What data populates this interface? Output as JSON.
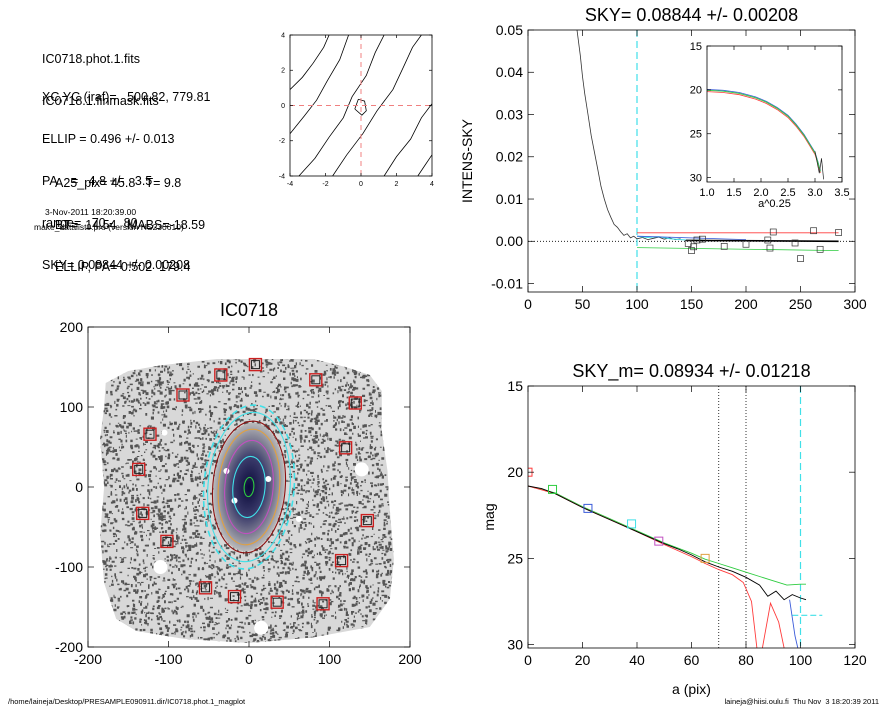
{
  "header": {
    "lines_a": [
      "IC0718.phot.1.fits",
      "IC0718.1.finmask.fits"
    ],
    "lines_b": [
      "XC,YC (iraf)=   500.82, 779.81",
      "ELLIP = 0.496 +/- 0.013",
      "PA    =   4.8 +/-   3.5",
      "range=   70.-   80.",
      "SKY= 0.08844 +/- 0.00208"
    ],
    "lines_c": [
      "A25_pix= 45.8   T= 9.8",
      "BT=  14.54   MABS=-18.59",
      "ELLIP, PA= 0.502  179.4"
    ],
    "date": "3-Nov-2011 18:20:39.00",
    "program": "make_datalist0.pro (version HS230610)"
  },
  "footer": {
    "path": "/home/laineja/Desktop/PRESAMPLE090911.dir/IC0718.phot.1_magplot",
    "user": "laineja@hiisi.oulu.fi  Thu Nov  3 18:20:39 2011"
  },
  "colors": {
    "black": "#000000",
    "red": "#ff3b3b",
    "green": "#2ecc40",
    "blue": "#3a5bd9",
    "cyan": "#40e0e8",
    "magenta": "#c050c0",
    "orange": "#e0a040",
    "pink_dash": "#f08080",
    "dark_red": "#8b1010",
    "box_red": "#cc2020"
  },
  "chart_data": [
    {
      "id": "centroid_contours",
      "type": "line",
      "xlim": [
        -4,
        4
      ],
      "ylim": [
        -4,
        4
      ],
      "xticks": [
        -4,
        -2,
        0,
        2,
        4
      ],
      "yticks": [
        -4,
        -2,
        0,
        2,
        4
      ],
      "xtick_labels": [
        "-4",
        "-2",
        "0",
        "2",
        "4"
      ],
      "ytick_labels": [
        "-4",
        "-2",
        "0",
        "2",
        "4"
      ],
      "crosshair": [
        0,
        0
      ],
      "contours": [
        [
          [
            -4,
            0.9
          ],
          [
            -3.3,
            1.6
          ],
          [
            -2.7,
            2.4
          ],
          [
            -2.1,
            3.3
          ],
          [
            -1.8,
            4
          ]
        ],
        [
          [
            -4,
            -1.6
          ],
          [
            -3.2,
            -0.6
          ],
          [
            -2.5,
            0.3
          ],
          [
            -1.9,
            1.4
          ],
          [
            -1.2,
            2.6
          ],
          [
            -0.7,
            4
          ]
        ],
        [
          [
            -3.5,
            -4
          ],
          [
            -2.6,
            -3.0
          ],
          [
            -1.8,
            -1.8
          ],
          [
            -1.0,
            -0.7
          ],
          [
            -0.5,
            0.5
          ],
          [
            0.3,
            1.7
          ],
          [
            0.8,
            3.0
          ],
          [
            1.3,
            4
          ]
        ],
        [
          [
            -1.6,
            -4
          ],
          [
            -0.8,
            -2.8
          ],
          [
            0.1,
            -1.6
          ],
          [
            0.9,
            -0.3
          ],
          [
            1.8,
            0.9
          ],
          [
            2.4,
            2.2
          ],
          [
            2.9,
            3.3
          ],
          [
            3.4,
            4
          ]
        ],
        [
          [
            1.3,
            -4
          ],
          [
            2.0,
            -2.9
          ],
          [
            2.8,
            -1.9
          ],
          [
            3.4,
            -0.7
          ],
          [
            4,
            0.1
          ]
        ],
        [
          [
            3.2,
            -4
          ],
          [
            3.6,
            -3.4
          ],
          [
            4,
            -2.8
          ]
        ],
        [
          [
            -0.35,
            -0.2
          ],
          [
            -0.15,
            0.35
          ],
          [
            0.2,
            0.25
          ],
          [
            0.3,
            -0.3
          ],
          [
            0.05,
            -0.55
          ],
          [
            -0.35,
            -0.2
          ]
        ]
      ]
    },
    {
      "id": "sky_profile",
      "type": "line",
      "title": "SKY= 0.08844 +/- 0.00208",
      "xlabel": "",
      "ylabel": "INTENS-SKY",
      "xlim": [
        0,
        300
      ],
      "ylim": [
        -0.012,
        0.05
      ],
      "xticks": [
        0,
        50,
        100,
        150,
        200,
        250,
        300
      ],
      "xtick_labels": [
        "0",
        "50",
        "100",
        "150",
        "200",
        "250",
        "300"
      ],
      "yticks": [
        -0.01,
        0.0,
        0.01,
        0.02,
        0.03,
        0.04,
        0.05
      ],
      "ytick_labels": [
        "-0.01",
        "0.00",
        "0.01",
        "0.02",
        "0.03",
        "0.04",
        "0.05"
      ],
      "vline_cyan": 100,
      "zero_dotted": true,
      "profile": [
        [
          45,
          0.05
        ],
        [
          48,
          0.044
        ],
        [
          50,
          0.039
        ],
        [
          52,
          0.035
        ],
        [
          55,
          0.03
        ],
        [
          58,
          0.025
        ],
        [
          61,
          0.021
        ],
        [
          64,
          0.017
        ],
        [
          67,
          0.013
        ],
        [
          70,
          0.01
        ],
        [
          73,
          0.0075
        ],
        [
          76,
          0.0057
        ],
        [
          79,
          0.004
        ],
        [
          82,
          0.0033
        ],
        [
          85,
          0.0023
        ],
        [
          88,
          0.0014
        ],
        [
          91,
          0.0018
        ],
        [
          94,
          0.0008
        ],
        [
          97,
          0.0012
        ],
        [
          100,
          0.0006
        ],
        [
          105,
          0.0009
        ],
        [
          110,
          0.0004
        ],
        [
          115,
          0.0007
        ],
        [
          120,
          0.001
        ],
        [
          125,
          0.0005
        ],
        [
          130,
          0.0008
        ],
        [
          135,
          0.0004
        ],
        [
          140,
          0.0006
        ]
      ],
      "cyan_profile": [
        [
          100,
          0.0012
        ],
        [
          110,
          0.0009
        ],
        [
          120,
          0.0011
        ],
        [
          130,
          0.0006
        ],
        [
          140,
          0.0004
        ],
        [
          150,
          0.0002
        ],
        [
          160,
          0.0003
        ]
      ],
      "black_line": [
        [
          145,
          0.0002
        ],
        [
          285,
          0.0
        ]
      ],
      "red_line": [
        [
          100,
          0.002
        ],
        [
          285,
          0.002
        ]
      ],
      "green_line": [
        [
          100,
          -0.0015
        ],
        [
          285,
          -0.0022
        ]
      ],
      "blue_line": [
        [
          100,
          0.0012
        ],
        [
          200,
          0.0004
        ]
      ],
      "squares": [
        [
          147,
          -0.0005
        ],
        [
          150,
          -0.0022
        ],
        [
          152,
          -0.0013
        ],
        [
          155,
          0.0003
        ],
        [
          160,
          0.0005
        ],
        [
          180,
          -0.0012
        ],
        [
          200,
          -0.0007
        ],
        [
          220,
          0.0003
        ],
        [
          222,
          -0.0016
        ],
        [
          225,
          0.0022
        ],
        [
          245,
          -0.0004
        ],
        [
          250,
          -0.0041
        ],
        [
          262,
          0.0025
        ],
        [
          268,
          -0.0019
        ],
        [
          285,
          0.0021
        ]
      ],
      "inset": {
        "xlabel": "a^0.25",
        "xlim": [
          1.0,
          3.5
        ],
        "ylim": [
          15,
          30.5
        ],
        "xticks": [
          1.0,
          1.5,
          2.0,
          2.5,
          3.0,
          3.5
        ],
        "xtick_labels": [
          "1.0",
          "1.5",
          "2.0",
          "2.5",
          "3.0",
          "3.5"
        ],
        "yticks": [
          15,
          20,
          25,
          30
        ],
        "ytick_labels": [
          "15",
          "20",
          "25",
          "30"
        ],
        "curve": [
          [
            1.0,
            20.05
          ],
          [
            1.3,
            20.15
          ],
          [
            1.6,
            20.4
          ],
          [
            1.9,
            20.9
          ],
          [
            2.1,
            21.4
          ],
          [
            2.3,
            22.1
          ],
          [
            2.5,
            23.0
          ],
          [
            2.65,
            24.0
          ],
          [
            2.8,
            25.2
          ],
          [
            2.9,
            26.2
          ],
          [
            3.0,
            27.2
          ],
          [
            3.05,
            28.2
          ],
          [
            3.1,
            29.3
          ]
        ]
      }
    },
    {
      "id": "galaxy_image",
      "type": "scatter",
      "title": "IC0718",
      "xlim": [
        -200,
        200
      ],
      "ylim": [
        -200,
        200
      ],
      "xticks": [
        -200,
        -100,
        0,
        100,
        200
      ],
      "xtick_labels": [
        "-200",
        "-100",
        "0",
        "100",
        "200"
      ],
      "yticks": [
        -200,
        -100,
        0,
        100,
        200
      ],
      "ytick_labels": [
        "-200",
        "-100",
        "0",
        "100",
        "200"
      ],
      "field_polygon": [
        [
          -178,
          130
        ],
        [
          -150,
          145
        ],
        [
          -110,
          152
        ],
        [
          -40,
          160
        ],
        [
          20,
          160
        ],
        [
          80,
          160
        ],
        [
          120,
          150
        ],
        [
          150,
          140
        ],
        [
          165,
          120
        ],
        [
          165,
          70
        ],
        [
          172,
          20
        ],
        [
          175,
          -30
        ],
        [
          180,
          -90
        ],
        [
          175,
          -140
        ],
        [
          150,
          -175
        ],
        [
          80,
          -188
        ],
        [
          0,
          -195
        ],
        [
          -80,
          -190
        ],
        [
          -140,
          -180
        ],
        [
          -165,
          -165
        ],
        [
          -180,
          -120
        ],
        [
          -185,
          -60
        ],
        [
          -180,
          0
        ],
        [
          -185,
          60
        ],
        [
          -180,
          100
        ]
      ],
      "ellipses": [
        {
          "a": 102,
          "b": 56,
          "pa": 4.8,
          "color": "cyan",
          "dash": true
        },
        {
          "a": 93,
          "b": 51,
          "pa": 4.8,
          "color": "cyan",
          "dash": false
        },
        {
          "a": 82,
          "b": 45,
          "pa": 4.8,
          "color": "dark_red",
          "dash": false
        },
        {
          "a": 72,
          "b": 38,
          "pa": 4.8,
          "color": "orange",
          "dash": false
        },
        {
          "a": 58,
          "b": 30,
          "pa": 4.8,
          "color": "magenta",
          "dash": false
        },
        {
          "a": 38,
          "b": 20,
          "pa": 4.8,
          "color": "cyan",
          "dash": false
        },
        {
          "a": 12,
          "b": 6,
          "pa": 4.8,
          "color": "green",
          "dash": false
        }
      ],
      "sky_boxes": [
        [
          8,
          153
        ],
        [
          -35,
          140
        ],
        [
          83,
          134
        ],
        [
          -82,
          115
        ],
        [
          132,
          105
        ],
        [
          -123,
          66
        ],
        [
          120,
          49
        ],
        [
          -137,
          22
        ],
        [
          -132,
          -33
        ],
        [
          147,
          -42
        ],
        [
          -102,
          -68
        ],
        [
          115,
          -92
        ],
        [
          -54,
          -126
        ],
        [
          -18,
          -137
        ],
        [
          35,
          -144
        ],
        [
          92,
          -146
        ]
      ],
      "masked_stars": [
        [
          140,
          22
        ],
        [
          -110,
          -100
        ],
        [
          15,
          -176
        ],
        [
          -28,
          20
        ],
        [
          -18,
          -17
        ],
        [
          24,
          10
        ],
        [
          62,
          -40
        ],
        [
          -105,
          68
        ]
      ]
    },
    {
      "id": "mag_profile",
      "type": "line",
      "title": "SKY_m=  0.08934 +/- 0.01218",
      "xlabel": "a (pix)",
      "ylabel": "mag",
      "xlim": [
        0,
        120
      ],
      "ylim": [
        15,
        30.2
      ],
      "xticks": [
        0,
        20,
        40,
        60,
        80,
        100,
        120
      ],
      "xtick_labels": [
        "0",
        "20",
        "40",
        "60",
        "80",
        "100",
        "120"
      ],
      "yticks": [
        15,
        20,
        25,
        30
      ],
      "ytick_labels": [
        "15",
        "20",
        "25",
        "30"
      ],
      "vlines_dotted": [
        70,
        80
      ],
      "vline_cyan": 100,
      "cyan_hline": [
        [
          97,
          28.3
        ],
        [
          108,
          28.3
        ]
      ],
      "black_curve": [
        [
          0,
          20.8
        ],
        [
          5,
          20.95
        ],
        [
          10,
          21.25
        ],
        [
          15,
          21.65
        ],
        [
          20,
          22.05
        ],
        [
          25,
          22.4
        ],
        [
          30,
          22.75
        ],
        [
          35,
          23.1
        ],
        [
          40,
          23.45
        ],
        [
          45,
          23.8
        ],
        [
          50,
          24.15
        ],
        [
          55,
          24.45
        ],
        [
          60,
          24.8
        ],
        [
          65,
          25.2
        ],
        [
          70,
          25.5
        ],
        [
          75,
          25.75
        ],
        [
          80,
          26.1
        ],
        [
          85,
          26.55
        ],
        [
          88,
          27.2
        ],
        [
          91,
          26.9
        ],
        [
          94,
          27.4
        ],
        [
          97,
          27.1
        ],
        [
          100,
          27.3
        ],
        [
          102,
          27.4
        ]
      ],
      "red_curve": [
        [
          0,
          20.8
        ],
        [
          10,
          21.25
        ],
        [
          20,
          22.05
        ],
        [
          30,
          22.75
        ],
        [
          40,
          23.45
        ],
        [
          50,
          24.2
        ],
        [
          60,
          24.9
        ],
        [
          65,
          25.3
        ],
        [
          70,
          25.65
        ],
        [
          75,
          25.95
        ],
        [
          79,
          26.4
        ],
        [
          82,
          27.5
        ],
        [
          84,
          30.2
        ]
      ],
      "red_curve2": [
        [
          86,
          30.2
        ],
        [
          89,
          27.6
        ],
        [
          92,
          28.7
        ],
        [
          94,
          30.2
        ]
      ],
      "green_curve": [
        [
          0,
          20.8
        ],
        [
          10,
          21.2
        ],
        [
          20,
          22.0
        ],
        [
          30,
          22.7
        ],
        [
          40,
          23.4
        ],
        [
          50,
          24.1
        ],
        [
          60,
          24.7
        ],
        [
          65,
          25.05
        ],
        [
          70,
          25.3
        ],
        [
          75,
          25.55
        ],
        [
          80,
          25.8
        ],
        [
          85,
          26.05
        ],
        [
          90,
          26.3
        ],
        [
          95,
          26.55
        ],
        [
          100,
          26.5
        ],
        [
          102,
          26.5
        ]
      ],
      "blue_curve": [
        [
          96,
          27.4
        ],
        [
          98,
          29.5
        ],
        [
          99,
          30.2
        ]
      ],
      "squares": [
        [
          0,
          20.0,
          "red"
        ],
        [
          9,
          21.0,
          "green"
        ],
        [
          22,
          22.1,
          "blue"
        ],
        [
          38,
          23.0,
          "cyan"
        ],
        [
          48,
          24.0,
          "magenta"
        ],
        [
          65,
          25.0,
          "orange"
        ]
      ]
    }
  ]
}
